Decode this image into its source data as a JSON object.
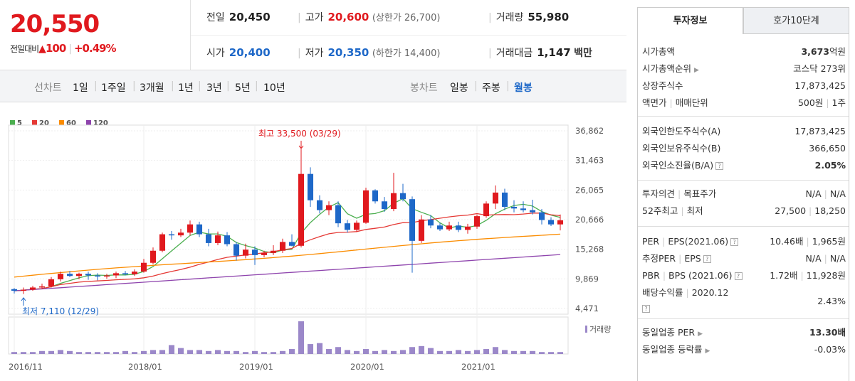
{
  "quote": {
    "current_price": "20,550",
    "change_label": "전일대비",
    "change_arrow": "▲",
    "change_amount": "100",
    "change_pct": "+0.49%",
    "row1": {
      "prev_label": "전일",
      "prev_value": "20,450",
      "high_label": "고가",
      "high_value": "20,600",
      "upper_limit": "(상한가 26,700)",
      "volume_label": "거래량",
      "volume_value": "55,980"
    },
    "row2": {
      "open_label": "시가",
      "open_value": "20,400",
      "low_label": "저가",
      "low_value": "20,350",
      "lower_limit": "(하한가 14,400)",
      "amount_label": "거래대금",
      "amount_value": "1,147",
      "amount_unit": "백만"
    }
  },
  "toolbar": {
    "line_chart_label": "선차트",
    "line_periods": [
      "1일",
      "1주일",
      "3개월",
      "1년",
      "3년",
      "5년",
      "10년"
    ],
    "candle_chart_label": "봉차트",
    "candle_periods": [
      "일봉",
      "주봉",
      "월봉"
    ],
    "active_candle_period": "월봉"
  },
  "chart_data": {
    "type": "candlestick",
    "legend": [
      {
        "name": "5",
        "color": "#4caf50"
      },
      {
        "name": "20",
        "color": "#e53935"
      },
      {
        "name": "60",
        "color": "#fb8c00"
      },
      {
        "name": "120",
        "color": "#8e44ad"
      }
    ],
    "y_ticks": [
      "36,862",
      "31,463",
      "26,065",
      "20,666",
      "15,268",
      "9,869",
      "4,471"
    ],
    "ylim": [
      4471,
      36862
    ],
    "x_ticks": [
      "2016/11",
      "2018/01",
      "2019/01",
      "2020/01",
      "2021/01"
    ],
    "high_annotation": "최고 33,500 (03/29)",
    "low_annotation": "최저 7,110 (12/29)",
    "volume_label": "거래량",
    "up_color": "#e0191e",
    "down_color": "#1e68c8",
    "candles": [
      {
        "o": 8000,
        "h": 8200,
        "l": 7200,
        "c": 7700
      },
      {
        "o": 7700,
        "h": 8300,
        "l": 7110,
        "c": 7900
      },
      {
        "o": 7900,
        "h": 8600,
        "l": 7700,
        "c": 8300
      },
      {
        "o": 8300,
        "h": 9000,
        "l": 8000,
        "c": 8500
      },
      {
        "o": 8500,
        "h": 10200,
        "l": 8300,
        "c": 9800
      },
      {
        "o": 9800,
        "h": 11200,
        "l": 9400,
        "c": 10800
      },
      {
        "o": 10800,
        "h": 11300,
        "l": 10200,
        "c": 10400
      },
      {
        "o": 10400,
        "h": 11000,
        "l": 9800,
        "c": 10800
      },
      {
        "o": 10800,
        "h": 11200,
        "l": 9700,
        "c": 10500
      },
      {
        "o": 10500,
        "h": 10900,
        "l": 9600,
        "c": 10300
      },
      {
        "o": 10300,
        "h": 10800,
        "l": 9900,
        "c": 10500
      },
      {
        "o": 10500,
        "h": 11200,
        "l": 10000,
        "c": 10900
      },
      {
        "o": 10900,
        "h": 11300,
        "l": 10500,
        "c": 10700
      },
      {
        "o": 10700,
        "h": 11600,
        "l": 10400,
        "c": 11200
      },
      {
        "o": 11200,
        "h": 13500,
        "l": 11000,
        "c": 12800
      },
      {
        "o": 12800,
        "h": 15600,
        "l": 12500,
        "c": 15000
      },
      {
        "o": 15000,
        "h": 18300,
        "l": 14700,
        "c": 18000
      },
      {
        "o": 18000,
        "h": 18600,
        "l": 17000,
        "c": 17800
      },
      {
        "o": 17800,
        "h": 19000,
        "l": 17500,
        "c": 18300
      },
      {
        "o": 18300,
        "h": 20500,
        "l": 17800,
        "c": 19800
      },
      {
        "o": 19800,
        "h": 20300,
        "l": 17500,
        "c": 18000
      },
      {
        "o": 18000,
        "h": 19000,
        "l": 15800,
        "c": 16400
      },
      {
        "o": 16400,
        "h": 18500,
        "l": 16000,
        "c": 17800
      },
      {
        "o": 17800,
        "h": 18400,
        "l": 15800,
        "c": 16200
      },
      {
        "o": 16200,
        "h": 16600,
        "l": 13200,
        "c": 14100
      },
      {
        "o": 14100,
        "h": 16300,
        "l": 13600,
        "c": 15200
      },
      {
        "o": 15200,
        "h": 15800,
        "l": 12400,
        "c": 14200
      },
      {
        "o": 14200,
        "h": 15000,
        "l": 13800,
        "c": 14600
      },
      {
        "o": 14600,
        "h": 16000,
        "l": 14200,
        "c": 15000
      },
      {
        "o": 15000,
        "h": 17200,
        "l": 14600,
        "c": 16600
      },
      {
        "o": 16600,
        "h": 18000,
        "l": 15800,
        "c": 15900
      },
      {
        "o": 15900,
        "h": 33500,
        "l": 15600,
        "c": 29000
      },
      {
        "o": 29000,
        "h": 30200,
        "l": 23000,
        "c": 24200
      },
      {
        "o": 24200,
        "h": 25100,
        "l": 21800,
        "c": 22400
      },
      {
        "o": 22400,
        "h": 24000,
        "l": 21500,
        "c": 23300
      },
      {
        "o": 23300,
        "h": 24000,
        "l": 19300,
        "c": 20000
      },
      {
        "o": 20000,
        "h": 20600,
        "l": 18300,
        "c": 18800
      },
      {
        "o": 18800,
        "h": 20500,
        "l": 18400,
        "c": 20100
      },
      {
        "o": 20100,
        "h": 26500,
        "l": 19900,
        "c": 26000
      },
      {
        "o": 26000,
        "h": 26200,
        "l": 23600,
        "c": 24000
      },
      {
        "o": 24000,
        "h": 24800,
        "l": 22100,
        "c": 22600
      },
      {
        "o": 22600,
        "h": 29200,
        "l": 22200,
        "c": 25500
      },
      {
        "o": 25500,
        "h": 27200,
        "l": 24000,
        "c": 24400
      },
      {
        "o": 24400,
        "h": 24900,
        "l": 11000,
        "c": 16800
      },
      {
        "o": 16800,
        "h": 21500,
        "l": 16400,
        "c": 20700
      },
      {
        "o": 20700,
        "h": 21500,
        "l": 19100,
        "c": 19600
      },
      {
        "o": 19600,
        "h": 20100,
        "l": 18600,
        "c": 18900
      },
      {
        "o": 18900,
        "h": 20300,
        "l": 18600,
        "c": 19600
      },
      {
        "o": 19600,
        "h": 20300,
        "l": 18400,
        "c": 18800
      },
      {
        "o": 18800,
        "h": 19900,
        "l": 18100,
        "c": 19400
      },
      {
        "o": 19400,
        "h": 21600,
        "l": 19000,
        "c": 21300
      },
      {
        "o": 21300,
        "h": 24000,
        "l": 21000,
        "c": 23600
      },
      {
        "o": 23600,
        "h": 26900,
        "l": 22600,
        "c": 25600
      },
      {
        "o": 25600,
        "h": 26300,
        "l": 22400,
        "c": 23000
      },
      {
        "o": 23000,
        "h": 24200,
        "l": 22000,
        "c": 22700
      },
      {
        "o": 22700,
        "h": 24000,
        "l": 22000,
        "c": 22400
      },
      {
        "o": 22400,
        "h": 24300,
        "l": 21600,
        "c": 22000
      },
      {
        "o": 22000,
        "h": 22600,
        "l": 19800,
        "c": 20600
      },
      {
        "o": 20600,
        "h": 21100,
        "l": 19500,
        "c": 19800
      },
      {
        "o": 19800,
        "h": 21600,
        "l": 18700,
        "c": 20550
      }
    ],
    "volume": [
      2,
      2,
      2,
      3,
      3,
      4,
      3,
      2,
      2,
      2,
      2,
      2,
      3,
      2,
      3,
      4,
      4,
      9,
      6,
      4,
      4,
      3,
      4,
      3,
      3,
      2,
      3,
      2,
      2,
      3,
      5,
      33,
      10,
      11,
      5,
      7,
      4,
      3,
      5,
      3,
      4,
      3,
      4,
      7,
      8,
      6,
      3,
      3,
      4,
      3,
      4,
      5,
      7,
      4,
      3,
      3,
      3,
      2,
      2,
      2
    ]
  },
  "invest_info": {
    "tabs": [
      "투자정보",
      "호가10단계"
    ],
    "market_cap_label": "시가총액",
    "market_cap_value": "3,673",
    "market_cap_unit": "억원",
    "market_rank_label": "시가총액순위",
    "market_rank_value": "코스닥 273위",
    "shares_label": "상장주식수",
    "shares_value": "17,873,425",
    "par_label": "액면가",
    "trade_unit_label": "매매단위",
    "par_value": "500원",
    "trade_unit_value": "1주",
    "foreign_limit_label": "외국인한도주식수(A)",
    "foreign_limit_value": "17,873,425",
    "foreign_hold_label": "외국인보유주식수(B)",
    "foreign_hold_value": "366,650",
    "foreign_ratio_label": "외국인소진율(B/A)",
    "foreign_ratio_value": "2.05%",
    "opinion_label": "투자의견",
    "target_label": "목표주가",
    "opinion_value": "N/A",
    "target_value": "N/A",
    "w52_high_label": "52주최고",
    "w52_low_label": "최저",
    "w52_high_value": "27,500",
    "w52_low_value": "18,250",
    "per_label": "PER",
    "eps_label": "EPS(2021.06)",
    "per_value": "10.46배",
    "eps_value": "1,965원",
    "est_per_label": "추정PER",
    "est_eps_label": "EPS",
    "est_per_value": "N/A",
    "est_eps_value": "N/A",
    "pbr_label": "PBR",
    "bps_label": "BPS (2021.06)",
    "pbr_value": "1.72배",
    "bps_value": "11,928원",
    "dividend_label": "배당수익률",
    "dividend_year": "2020.12",
    "dividend_value": "2.43%",
    "sector_per_label": "동일업종 PER",
    "sector_per_value": "13.30배",
    "sector_change_label": "동일업종 등락률",
    "sector_change_value": "-0.03%"
  }
}
